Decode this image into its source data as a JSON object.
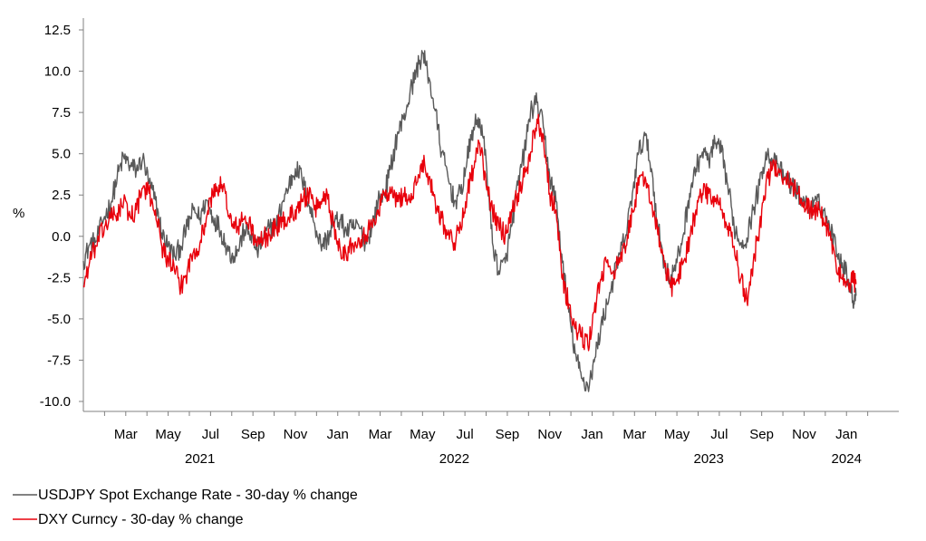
{
  "chart_data": {
    "type": "line",
    "title": "",
    "ylabel": "%",
    "xlabel": "",
    "ylim": [
      -10.0,
      12.5
    ],
    "yticks": [
      12.5,
      10.0,
      7.5,
      5.0,
      2.5,
      0.0,
      -2.5,
      -5.0,
      -7.5,
      -10.0
    ],
    "ytick_labels": [
      "12.5",
      "10.0",
      "7.5",
      "5.0",
      "2.5",
      "0.0",
      "-2.5",
      "-5.0",
      "-7.5",
      "-10.0"
    ],
    "x_range_months": [
      0,
      37.4
    ],
    "month_ticks": [
      {
        "label": "Mar",
        "m": 2
      },
      {
        "label": "May",
        "m": 4
      },
      {
        "label": "Jul",
        "m": 6
      },
      {
        "label": "Sep",
        "m": 8
      },
      {
        "label": "Nov",
        "m": 10
      },
      {
        "label": "Jan",
        "m": 12
      },
      {
        "label": "Mar",
        "m": 14
      },
      {
        "label": "May",
        "m": 16
      },
      {
        "label": "Jul",
        "m": 18
      },
      {
        "label": "Sep",
        "m": 20
      },
      {
        "label": "Nov",
        "m": 22
      },
      {
        "label": "Jan",
        "m": 24
      },
      {
        "label": "Mar",
        "m": 26
      },
      {
        "label": "May",
        "m": 28
      },
      {
        "label": "Jul",
        "m": 30
      },
      {
        "label": "Sep",
        "m": 32
      },
      {
        "label": "Nov",
        "m": 34
      },
      {
        "label": "Jan",
        "m": 36
      }
    ],
    "year_labels": [
      {
        "label": "2021",
        "m": 5.5
      },
      {
        "label": "2022",
        "m": 17.5
      },
      {
        "label": "2023",
        "m": 29.5
      },
      {
        "label": "2024",
        "m": 36
      }
    ],
    "series": [
      {
        "name": "USDJPY Spot Exchange Rate  - 30-day % change",
        "color": "#595959",
        "points": [
          [
            0,
            -1.5
          ],
          [
            0.3,
            -0.5
          ],
          [
            0.6,
            -0.3
          ],
          [
            1.0,
            1.2
          ],
          [
            1.3,
            2.0
          ],
          [
            1.6,
            3.6
          ],
          [
            1.9,
            4.8
          ],
          [
            2.2,
            4.3
          ],
          [
            2.5,
            4.0
          ],
          [
            2.8,
            4.7
          ],
          [
            3.1,
            3.2
          ],
          [
            3.4,
            2.2
          ],
          [
            3.7,
            0.2
          ],
          [
            4.0,
            -0.6
          ],
          [
            4.3,
            -1.2
          ],
          [
            4.6,
            -0.6
          ],
          [
            4.9,
            0.6
          ],
          [
            5.2,
            1.6
          ],
          [
            5.5,
            1.1
          ],
          [
            5.8,
            2.2
          ],
          [
            6.1,
            1.2
          ],
          [
            6.4,
            0.6
          ],
          [
            6.7,
            -0.4
          ],
          [
            7.0,
            -1.2
          ],
          [
            7.3,
            -0.8
          ],
          [
            7.6,
            0.4
          ],
          [
            7.9,
            0.1
          ],
          [
            8.2,
            -0.9
          ],
          [
            8.5,
            -0.2
          ],
          [
            8.8,
            0.6
          ],
          [
            9.1,
            0.6
          ],
          [
            9.4,
            2.1
          ],
          [
            9.7,
            3.1
          ],
          [
            10.0,
            4.1
          ],
          [
            10.3,
            3.6
          ],
          [
            10.6,
            2.1
          ],
          [
            10.9,
            0.8
          ],
          [
            11.2,
            -0.5
          ],
          [
            11.5,
            -0.2
          ],
          [
            11.8,
            0.8
          ],
          [
            12.1,
            1.0
          ],
          [
            12.4,
            0.3
          ],
          [
            12.7,
            0.5
          ],
          [
            13.0,
            0.6
          ],
          [
            13.3,
            -0.4
          ],
          [
            13.6,
            0.5
          ],
          [
            13.9,
            2.1
          ],
          [
            14.2,
            2.6
          ],
          [
            14.5,
            4.1
          ],
          [
            14.8,
            6.1
          ],
          [
            15.1,
            7.1
          ],
          [
            15.4,
            8.6
          ],
          [
            15.7,
            10.0
          ],
          [
            16.0,
            11.1
          ],
          [
            16.3,
            9.6
          ],
          [
            16.6,
            7.6
          ],
          [
            16.9,
            5.1
          ],
          [
            17.2,
            3.6
          ],
          [
            17.5,
            2.1
          ],
          [
            17.8,
            2.6
          ],
          [
            18.1,
            4.6
          ],
          [
            18.4,
            6.6
          ],
          [
            18.7,
            7.1
          ],
          [
            19.0,
            4.6
          ],
          [
            19.3,
            -0.4
          ],
          [
            19.6,
            -2.1
          ],
          [
            19.9,
            -1.6
          ],
          [
            20.2,
            0.6
          ],
          [
            20.5,
            3.1
          ],
          [
            20.8,
            5.1
          ],
          [
            21.1,
            7.6
          ],
          [
            21.4,
            8.1
          ],
          [
            21.7,
            6.6
          ],
          [
            22.0,
            3.6
          ],
          [
            22.3,
            2.1
          ],
          [
            22.6,
            -1.6
          ],
          [
            22.9,
            -4.6
          ],
          [
            23.2,
            -7.1
          ],
          [
            23.5,
            -8.6
          ],
          [
            23.8,
            -9.1
          ],
          [
            24.1,
            -7.6
          ],
          [
            24.4,
            -5.6
          ],
          [
            24.7,
            -4.1
          ],
          [
            25.0,
            -2.6
          ],
          [
            25.3,
            -1.1
          ],
          [
            25.6,
            0.1
          ],
          [
            25.9,
            2.6
          ],
          [
            26.2,
            5.1
          ],
          [
            26.5,
            6.1
          ],
          [
            26.8,
            4.1
          ],
          [
            27.1,
            0.6
          ],
          [
            27.4,
            -1.6
          ],
          [
            27.7,
            -2.6
          ],
          [
            28.0,
            -1.6
          ],
          [
            28.3,
            0.1
          ],
          [
            28.6,
            2.6
          ],
          [
            28.9,
            4.1
          ],
          [
            29.2,
            5.1
          ],
          [
            29.5,
            4.6
          ],
          [
            29.8,
            5.6
          ],
          [
            30.1,
            5.1
          ],
          [
            30.4,
            3.1
          ],
          [
            30.7,
            0.6
          ],
          [
            31.0,
            -0.4
          ],
          [
            31.3,
            -0.1
          ],
          [
            31.6,
            1.6
          ],
          [
            31.9,
            3.1
          ],
          [
            32.2,
            5.1
          ],
          [
            32.5,
            4.6
          ],
          [
            32.8,
            4.1
          ],
          [
            33.1,
            3.6
          ],
          [
            33.4,
            3.1
          ],
          [
            33.7,
            2.6
          ],
          [
            34.0,
            2.1
          ],
          [
            34.3,
            1.6
          ],
          [
            34.6,
            2.1
          ],
          [
            34.9,
            1.6
          ],
          [
            35.2,
            0.6
          ],
          [
            35.5,
            -0.6
          ],
          [
            35.8,
            -1.6
          ],
          [
            36.1,
            -2.6
          ],
          [
            36.3,
            -3.9
          ],
          [
            36.45,
            -3.6
          ]
        ]
      },
      {
        "name": "DXY Curncy  - 30-day % change",
        "color": "#e8000b",
        "points": [
          [
            0,
            -3.0
          ],
          [
            0.3,
            -1.5
          ],
          [
            0.6,
            -0.6
          ],
          [
            1.0,
            0.6
          ],
          [
            1.3,
            1.1
          ],
          [
            1.6,
            1.4
          ],
          [
            1.9,
            2.1
          ],
          [
            2.2,
            1.2
          ],
          [
            2.5,
            1.6
          ],
          [
            2.8,
            2.9
          ],
          [
            3.1,
            2.6
          ],
          [
            3.4,
            1.6
          ],
          [
            3.7,
            -0.6
          ],
          [
            4.0,
            -1.4
          ],
          [
            4.3,
            -2.1
          ],
          [
            4.6,
            -3.1
          ],
          [
            4.9,
            -2.1
          ],
          [
            5.2,
            -0.9
          ],
          [
            5.5,
            -0.4
          ],
          [
            5.8,
            1.1
          ],
          [
            6.1,
            2.6
          ],
          [
            6.4,
            3.1
          ],
          [
            6.7,
            2.6
          ],
          [
            7.0,
            0.6
          ],
          [
            7.3,
            0.6
          ],
          [
            7.6,
            1.1
          ],
          [
            7.9,
            0.6
          ],
          [
            8.2,
            -0.6
          ],
          [
            8.5,
            -0.1
          ],
          [
            8.8,
            0.1
          ],
          [
            9.1,
            0.6
          ],
          [
            9.4,
            0.9
          ],
          [
            9.7,
            1.1
          ],
          [
            10.0,
            1.6
          ],
          [
            10.3,
            2.1
          ],
          [
            10.6,
            2.6
          ],
          [
            10.9,
            1.6
          ],
          [
            11.2,
            2.1
          ],
          [
            11.5,
            2.6
          ],
          [
            11.8,
            0.6
          ],
          [
            12.1,
            -0.6
          ],
          [
            12.4,
            -1.1
          ],
          [
            12.7,
            -0.4
          ],
          [
            13.0,
            -0.1
          ],
          [
            13.3,
            0.1
          ],
          [
            13.6,
            0.6
          ],
          [
            13.9,
            1.6
          ],
          [
            14.2,
            2.6
          ],
          [
            14.5,
            2.6
          ],
          [
            14.8,
            2.1
          ],
          [
            15.1,
            2.6
          ],
          [
            15.4,
            2.1
          ],
          [
            15.7,
            3.1
          ],
          [
            16.0,
            4.6
          ],
          [
            16.3,
            3.6
          ],
          [
            16.6,
            2.1
          ],
          [
            16.9,
            1.1
          ],
          [
            17.2,
            0.1
          ],
          [
            17.5,
            -0.4
          ],
          [
            17.8,
            0.6
          ],
          [
            18.1,
            2.6
          ],
          [
            18.4,
            4.1
          ],
          [
            18.7,
            5.6
          ],
          [
            19.0,
            3.1
          ],
          [
            19.3,
            1.6
          ],
          [
            19.6,
            0.6
          ],
          [
            19.9,
            0.1
          ],
          [
            20.2,
            1.6
          ],
          [
            20.5,
            2.6
          ],
          [
            20.8,
            3.6
          ],
          [
            21.1,
            5.1
          ],
          [
            21.4,
            7.1
          ],
          [
            21.7,
            6.1
          ],
          [
            22.0,
            2.6
          ],
          [
            22.3,
            1.6
          ],
          [
            22.6,
            -2.6
          ],
          [
            22.9,
            -4.1
          ],
          [
            23.2,
            -5.6
          ],
          [
            23.5,
            -6.1
          ],
          [
            23.8,
            -6.6
          ],
          [
            24.1,
            -4.6
          ],
          [
            24.4,
            -2.6
          ],
          [
            24.7,
            -1.6
          ],
          [
            25.0,
            -2.1
          ],
          [
            25.3,
            -1.6
          ],
          [
            25.6,
            -0.6
          ],
          [
            25.9,
            1.6
          ],
          [
            26.2,
            3.1
          ],
          [
            26.5,
            3.6
          ],
          [
            26.8,
            2.1
          ],
          [
            27.1,
            0.1
          ],
          [
            27.4,
            -1.6
          ],
          [
            27.7,
            -3.1
          ],
          [
            28.0,
            -2.6
          ],
          [
            28.3,
            -1.6
          ],
          [
            28.6,
            -0.1
          ],
          [
            28.9,
            1.6
          ],
          [
            29.2,
            2.6
          ],
          [
            29.5,
            2.6
          ],
          [
            29.8,
            2.1
          ],
          [
            30.1,
            1.6
          ],
          [
            30.4,
            0.6
          ],
          [
            30.7,
            -0.6
          ],
          [
            31.0,
            -2.6
          ],
          [
            31.3,
            -3.9
          ],
          [
            31.6,
            -1.6
          ],
          [
            31.9,
            0.6
          ],
          [
            32.2,
            3.1
          ],
          [
            32.5,
            4.1
          ],
          [
            32.8,
            4.1
          ],
          [
            33.1,
            3.6
          ],
          [
            33.4,
            3.1
          ],
          [
            33.7,
            2.6
          ],
          [
            34.0,
            2.1
          ],
          [
            34.3,
            1.6
          ],
          [
            34.6,
            1.6
          ],
          [
            34.9,
            1.1
          ],
          [
            35.2,
            0.1
          ],
          [
            35.5,
            -1.6
          ],
          [
            35.8,
            -2.6
          ],
          [
            36.1,
            -3.1
          ],
          [
            36.3,
            -2.6
          ],
          [
            36.45,
            -2.9
          ]
        ]
      }
    ],
    "legend": [
      {
        "label": "USDJPY Spot Exchange Rate  - 30-day % change",
        "color": "#595959"
      },
      {
        "label": "DXY Curncy  - 30-day % change",
        "color": "#e8000b"
      }
    ],
    "legend_position": "bottom-left",
    "grid": false
  }
}
